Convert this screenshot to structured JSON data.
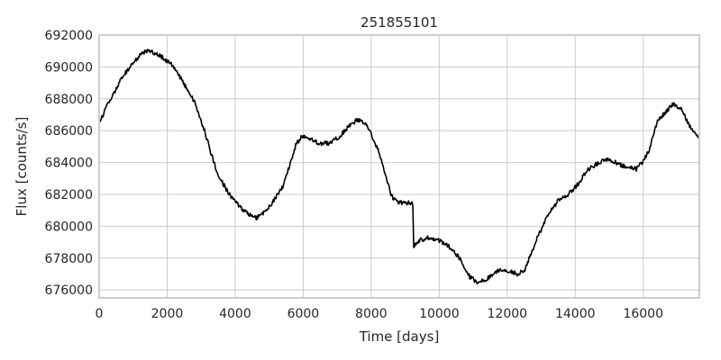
{
  "chart_data": {
    "type": "line",
    "title": "251855101",
    "xlabel": "Time [days]",
    "ylabel": "Flux [counts/s]",
    "xlim": [
      0,
      17650
    ],
    "ylim": [
      675500,
      692000
    ],
    "xticks": [
      0,
      2000,
      4000,
      6000,
      8000,
      10000,
      12000,
      14000,
      16000
    ],
    "yticks": [
      676000,
      678000,
      680000,
      682000,
      684000,
      686000,
      688000,
      690000,
      692000
    ],
    "grid": true,
    "colors": {
      "line": "#000000",
      "grid": "#cccccc"
    },
    "series": [
      {
        "x": [
          0,
          300,
          700,
          1000,
          1300,
          1500,
          1800,
          2100,
          2400,
          2800,
          3100,
          3300,
          3500,
          3800,
          4100,
          4400,
          4600,
          4800,
          5100,
          5400,
          5600,
          5800,
          6000,
          6200,
          6500,
          6800,
          7100,
          7400,
          7600,
          7800,
          8000,
          8200,
          8400,
          8600,
          8800,
          9000,
          9200,
          9250,
          9400,
          9700,
          10000,
          10300,
          10600,
          10900,
          11100,
          11400,
          11700,
          12000,
          12300,
          12500,
          12700,
          12900,
          13200,
          13500,
          13800,
          14100,
          14300,
          14600,
          14900,
          15200,
          15500,
          15800,
          16000,
          16200,
          16400,
          16700,
          16900,
          17100,
          17400,
          17650
        ],
        "y": [
          686400,
          687900,
          689400,
          690300,
          690900,
          691000,
          690700,
          690200,
          689300,
          687800,
          686000,
          684500,
          683200,
          682100,
          681300,
          680700,
          680500,
          680800,
          681500,
          682500,
          683800,
          685200,
          685700,
          685500,
          685200,
          685200,
          685700,
          686400,
          686700,
          686500,
          685800,
          684800,
          683400,
          681900,
          681500,
          681500,
          681400,
          678700,
          679100,
          679300,
          679100,
          678700,
          678000,
          676800,
          676500,
          676700,
          677200,
          677200,
          677000,
          677200,
          678300,
          679400,
          680700,
          681600,
          682000,
          682700,
          683400,
          683900,
          684200,
          684000,
          683700,
          683600,
          684100,
          684900,
          686500,
          687300,
          687700,
          687400,
          686200,
          685600
        ]
      }
    ]
  }
}
